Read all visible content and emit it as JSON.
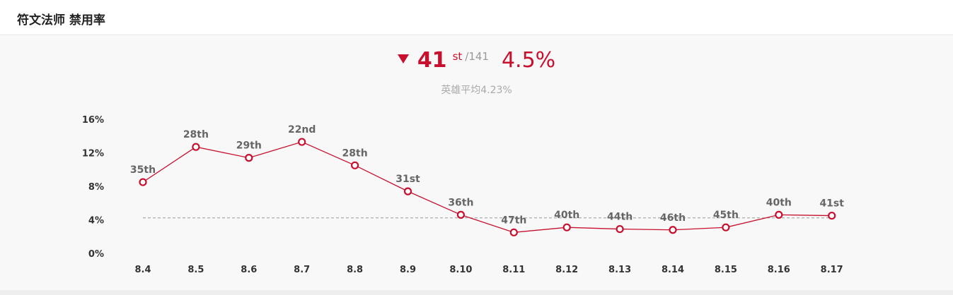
{
  "header": {
    "title": "符文法师 禁用率"
  },
  "summary": {
    "trend_icon": "triangle-down-icon",
    "rank": "41",
    "rank_suffix": "st",
    "rank_total": "/141",
    "ban_rate": "4.5%",
    "average_label": "英雄平均4.23%"
  },
  "colors": {
    "accent": "#c8102e",
    "muted": "#999999",
    "average_line": "#999999"
  },
  "chart_data": {
    "type": "line",
    "categories": [
      "8.4",
      "8.5",
      "8.6",
      "8.7",
      "8.8",
      "8.9",
      "8.10",
      "8.11",
      "8.12",
      "8.13",
      "8.14",
      "8.15",
      "8.16",
      "8.17"
    ],
    "series": [
      {
        "values": [
          8.5,
          12.7,
          11.4,
          13.3,
          10.5,
          7.4,
          4.6,
          2.5,
          3.1,
          2.9,
          2.8,
          3.1,
          4.6,
          4.5
        ],
        "point_labels": [
          "35th",
          "28th",
          "29th",
          "22nd",
          "28th",
          "31st",
          "36th",
          "47th",
          "40th",
          "44th",
          "46th",
          "45th",
          "40th",
          "41st"
        ]
      }
    ],
    "yticks": [
      "0%",
      "4%",
      "8%",
      "12%",
      "16%"
    ],
    "ylim": [
      0,
      16
    ],
    "reference_line": {
      "value": 4.23,
      "style": "dashed"
    },
    "grid": false,
    "legend": "none"
  }
}
